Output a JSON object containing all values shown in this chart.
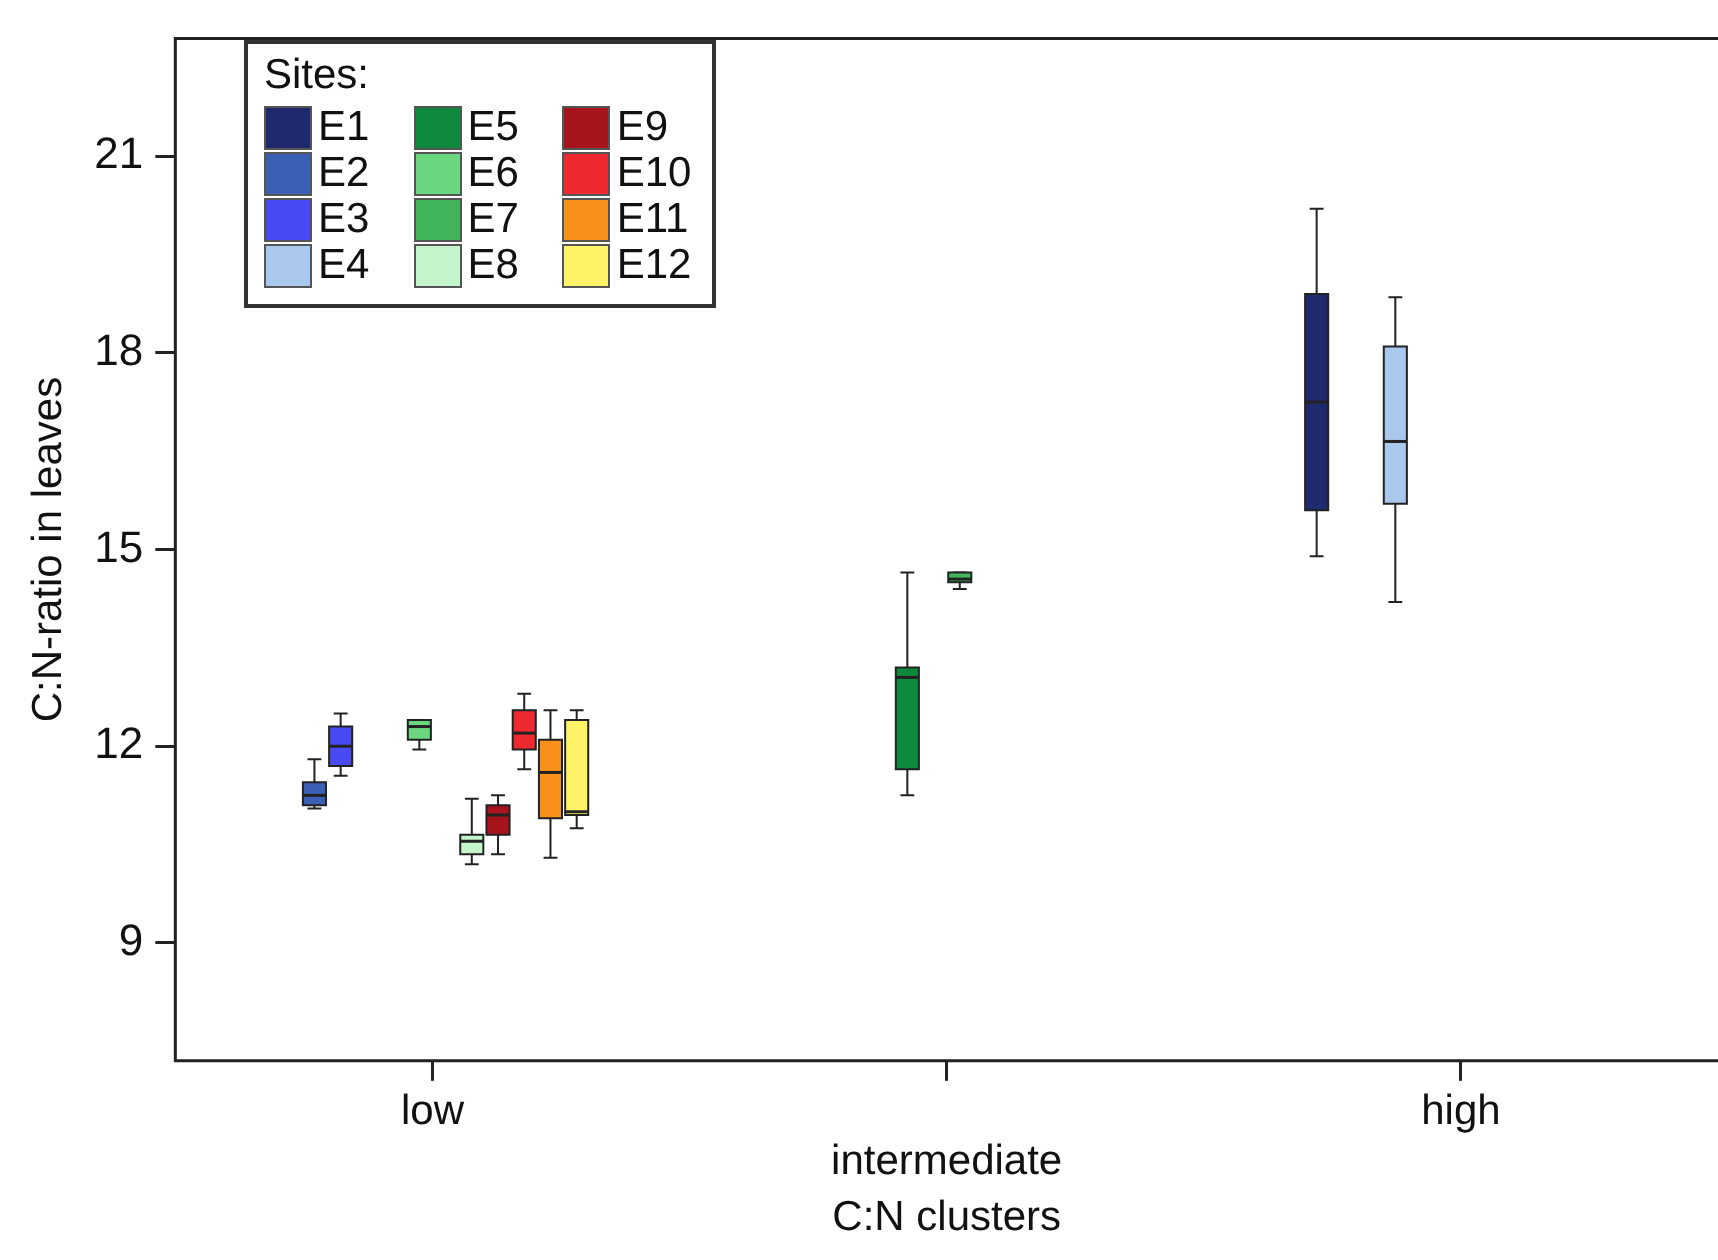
{
  "chart_data": {
    "type": "box",
    "xlabel": "C:N clusters",
    "ylabel": "C:N-ratio in leaves",
    "legend_title": "Sites:",
    "legend": "top left",
    "grid": false,
    "categories": [
      "low",
      "intermediate",
      "high"
    ],
    "ylim": [
      7.2,
      22.8
    ],
    "yticks": [
      9,
      12,
      15,
      18,
      21
    ],
    "series": [
      {
        "name": "E1",
        "color": "#1f2a6e",
        "boxes": [
          null,
          null,
          {
            "low": 14.9,
            "q1": 15.6,
            "median": 17.25,
            "q3": 18.9,
            "high": 20.2
          }
        ]
      },
      {
        "name": "E2",
        "color": "#3a5fb5",
        "boxes": [
          {
            "low": 11.05,
            "q1": 11.1,
            "median": 11.25,
            "q3": 11.45,
            "high": 11.8
          },
          null,
          null
        ]
      },
      {
        "name": "E3",
        "color": "#4a4af5",
        "boxes": [
          {
            "low": 11.55,
            "q1": 11.7,
            "median": 12.0,
            "q3": 12.3,
            "high": 12.5
          },
          null,
          null
        ]
      },
      {
        "name": "E4",
        "color": "#a9c8ec",
        "boxes": [
          null,
          null,
          {
            "low": 14.2,
            "q1": 15.7,
            "median": 16.65,
            "q3": 18.1,
            "high": 18.85
          }
        ]
      },
      {
        "name": "E5",
        "color": "#0e8a3e",
        "boxes": [
          null,
          {
            "low": 11.25,
            "q1": 11.65,
            "median": 13.05,
            "q3": 13.2,
            "high": 14.65
          },
          null
        ]
      },
      {
        "name": "E6",
        "color": "#6ad680",
        "boxes": [
          {
            "low": 11.95,
            "q1": 12.1,
            "median": 12.3,
            "q3": 12.4,
            "high": 12.4
          },
          null,
          null
        ]
      },
      {
        "name": "E7",
        "color": "#42b55a",
        "boxes": [
          null,
          {
            "low": 14.4,
            "q1": 14.5,
            "median": 14.55,
            "q3": 14.65,
            "high": 14.65
          },
          null
        ]
      },
      {
        "name": "E8",
        "color": "#c5f5cc",
        "boxes": [
          {
            "low": 10.2,
            "q1": 10.35,
            "median": 10.55,
            "q3": 10.65,
            "high": 11.2
          },
          null,
          null
        ]
      },
      {
        "name": "E9",
        "color": "#a8141c",
        "boxes": [
          {
            "low": 10.35,
            "q1": 10.65,
            "median": 10.95,
            "q3": 11.1,
            "high": 11.25
          },
          null,
          null
        ]
      },
      {
        "name": "E10",
        "color": "#ee2a30",
        "boxes": [
          {
            "low": 11.65,
            "q1": 11.95,
            "median": 12.2,
            "q3": 12.55,
            "high": 12.8
          },
          null,
          null
        ]
      },
      {
        "name": "E11",
        "color": "#f8901a",
        "boxes": [
          {
            "low": 10.3,
            "q1": 10.9,
            "median": 11.6,
            "q3": 12.1,
            "high": 12.55
          },
          null,
          null
        ]
      },
      {
        "name": "E12",
        "color": "#fff266",
        "boxes": [
          {
            "low": 10.75,
            "q1": 10.95,
            "median": 11.0,
            "q3": 12.4,
            "high": 12.55
          },
          null,
          null
        ]
      }
    ]
  }
}
